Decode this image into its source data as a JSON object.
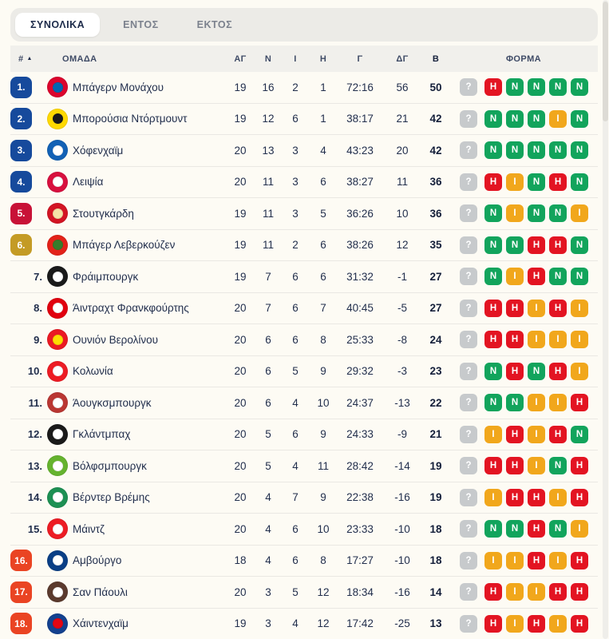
{
  "tabs": [
    {
      "label": "ΣΥΝΟΛΙΚΑ",
      "active": true
    },
    {
      "label": "ΕΝΤΟΣ",
      "active": false
    },
    {
      "label": "ΕΚΤΟΣ",
      "active": false
    }
  ],
  "sort_indicator": "▲",
  "table": {
    "headers": {
      "pos": "#",
      "team": "ΟΜΑΔΑ",
      "played": "ΑΓ",
      "wins": "Ν",
      "draws": "Ι",
      "losses": "Η",
      "goals": "Γ",
      "goal_diff": "ΔΓ",
      "points": "Β",
      "form": "ΦΟΡΜΑ"
    },
    "rows": [
      {
        "pos": "1.",
        "tier": "champions",
        "team": "Μπάγερν Μονάχου",
        "played": "19",
        "wins": "16",
        "draws": "2",
        "losses": "1",
        "goals": "72:16",
        "goal_diff": "56",
        "points": "50",
        "form": [
          "?",
          "H",
          "N",
          "N",
          "N",
          "N"
        ],
        "logo": {
          "primary": "#dc052d",
          "secondary": "#0066b2"
        }
      },
      {
        "pos": "2.",
        "tier": "champions",
        "team": "Μπορούσια Ντόρτμουντ",
        "played": "19",
        "wins": "12",
        "draws": "6",
        "losses": "1",
        "goals": "38:17",
        "goal_diff": "21",
        "points": "42",
        "form": [
          "?",
          "N",
          "N",
          "N",
          "I",
          "N"
        ],
        "logo": {
          "primary": "#ffd900",
          "secondary": "#1a1a1a"
        }
      },
      {
        "pos": "3.",
        "tier": "champions",
        "team": "Χόφενχαϊμ",
        "played": "20",
        "wins": "13",
        "draws": "3",
        "losses": "4",
        "goals": "43:23",
        "goal_diff": "20",
        "points": "42",
        "form": [
          "?",
          "N",
          "N",
          "N",
          "N",
          "N"
        ],
        "logo": {
          "primary": "#1261b5",
          "secondary": "#ffffff"
        }
      },
      {
        "pos": "4.",
        "tier": "champions",
        "team": "Λειψία",
        "played": "20",
        "wins": "11",
        "draws": "3",
        "losses": "6",
        "goals": "38:27",
        "goal_diff": "11",
        "points": "36",
        "form": [
          "?",
          "H",
          "I",
          "N",
          "H",
          "N"
        ],
        "logo": {
          "primary": "#d8103f",
          "secondary": "#ffffff"
        }
      },
      {
        "pos": "5.",
        "tier": "europa",
        "team": "Στουτγκάρδη",
        "played": "19",
        "wins": "11",
        "draws": "3",
        "losses": "5",
        "goals": "36:26",
        "goal_diff": "10",
        "points": "36",
        "form": [
          "?",
          "N",
          "I",
          "N",
          "N",
          "I"
        ],
        "logo": {
          "primary": "#d31423",
          "secondary": "#f6e3a8"
        }
      },
      {
        "pos": "6.",
        "tier": "conference",
        "team": "Μπάγερ Λεβερκούζεν",
        "played": "19",
        "wins": "11",
        "draws": "2",
        "losses": "6",
        "goals": "38:26",
        "goal_diff": "12",
        "points": "35",
        "form": [
          "?",
          "N",
          "N",
          "H",
          "H",
          "N"
        ],
        "logo": {
          "primary": "#e32219",
          "secondary": "#367c2b"
        }
      },
      {
        "pos": "7.",
        "tier": "none",
        "team": "Φράιμπουργκ",
        "played": "19",
        "wins": "7",
        "draws": "6",
        "losses": "6",
        "goals": "31:32",
        "goal_diff": "-1",
        "points": "27",
        "form": [
          "?",
          "N",
          "I",
          "H",
          "N",
          "N"
        ],
        "logo": {
          "primary": "#1a1a1a",
          "secondary": "#ffffff"
        }
      },
      {
        "pos": "8.",
        "tier": "none",
        "team": "Άιντραχτ Φρανκφούρτης",
        "played": "20",
        "wins": "7",
        "draws": "6",
        "losses": "7",
        "goals": "40:45",
        "goal_diff": "-5",
        "points": "27",
        "form": [
          "?",
          "H",
          "H",
          "I",
          "H",
          "I"
        ],
        "logo": {
          "primary": "#e1000f",
          "secondary": "#ffffff"
        }
      },
      {
        "pos": "9.",
        "tier": "none",
        "team": "Ουνιόν Βερολίνου",
        "played": "20",
        "wins": "6",
        "draws": "6",
        "losses": "8",
        "goals": "25:33",
        "goal_diff": "-8",
        "points": "24",
        "form": [
          "?",
          "H",
          "H",
          "I",
          "I",
          "I"
        ],
        "logo": {
          "primary": "#eb1923",
          "secondary": "#fddc02"
        }
      },
      {
        "pos": "10.",
        "tier": "none",
        "team": "Κολωνία",
        "played": "20",
        "wins": "6",
        "draws": "5",
        "losses": "9",
        "goals": "29:32",
        "goal_diff": "-3",
        "points": "23",
        "form": [
          "?",
          "N",
          "H",
          "N",
          "H",
          "I"
        ],
        "logo": {
          "primary": "#ed1c24",
          "secondary": "#ffffff"
        }
      },
      {
        "pos": "11.",
        "tier": "none",
        "team": "Άουγκσμπουργκ",
        "played": "20",
        "wins": "6",
        "draws": "4",
        "losses": "10",
        "goals": "24:37",
        "goal_diff": "-13",
        "points": "22",
        "form": [
          "?",
          "N",
          "N",
          "I",
          "I",
          "H"
        ],
        "logo": {
          "primary": "#ba3733",
          "secondary": "#ffffff"
        }
      },
      {
        "pos": "12.",
        "tier": "none",
        "team": "Γκλάντμπαχ",
        "played": "20",
        "wins": "5",
        "draws": "6",
        "losses": "9",
        "goals": "24:33",
        "goal_diff": "-9",
        "points": "21",
        "form": [
          "?",
          "I",
          "H",
          "I",
          "H",
          "N"
        ],
        "logo": {
          "primary": "#1a1a1a",
          "secondary": "#ffffff"
        }
      },
      {
        "pos": "13.",
        "tier": "none",
        "team": "Βόλφσμπουργκ",
        "played": "20",
        "wins": "5",
        "draws": "4",
        "losses": "11",
        "goals": "28:42",
        "goal_diff": "-14",
        "points": "19",
        "form": [
          "?",
          "H",
          "H",
          "I",
          "N",
          "H"
        ],
        "logo": {
          "primary": "#65b32e",
          "secondary": "#ffffff"
        }
      },
      {
        "pos": "14.",
        "tier": "none",
        "team": "Βέρντερ Βρέμης",
        "played": "20",
        "wins": "4",
        "draws": "7",
        "losses": "9",
        "goals": "22:38",
        "goal_diff": "-16",
        "points": "19",
        "form": [
          "?",
          "I",
          "H",
          "H",
          "I",
          "H"
        ],
        "logo": {
          "primary": "#1d9053",
          "secondary": "#ffffff"
        }
      },
      {
        "pos": "15.",
        "tier": "none",
        "team": "Μάιντζ",
        "played": "20",
        "wins": "4",
        "draws": "6",
        "losses": "10",
        "goals": "23:33",
        "goal_diff": "-10",
        "points": "18",
        "form": [
          "?",
          "N",
          "N",
          "H",
          "N",
          "I"
        ],
        "logo": {
          "primary": "#ed1c24",
          "secondary": "#ffffff"
        }
      },
      {
        "pos": "16.",
        "tier": "relegation",
        "team": "Αμβούργο",
        "played": "18",
        "wins": "4",
        "draws": "6",
        "losses": "8",
        "goals": "17:27",
        "goal_diff": "-10",
        "points": "18",
        "form": [
          "?",
          "I",
          "I",
          "H",
          "I",
          "H"
        ],
        "logo": {
          "primary": "#0a3f86",
          "secondary": "#ffffff"
        }
      },
      {
        "pos": "17.",
        "tier": "relegation",
        "team": "Σαν Πάουλι",
        "played": "20",
        "wins": "3",
        "draws": "5",
        "losses": "12",
        "goals": "18:34",
        "goal_diff": "-16",
        "points": "14",
        "form": [
          "?",
          "H",
          "I",
          "I",
          "H",
          "H"
        ],
        "logo": {
          "primary": "#5b3a2e",
          "secondary": "#ffffff"
        }
      },
      {
        "pos": "18.",
        "tier": "relegation",
        "team": "Χάιντενχαϊμ",
        "played": "19",
        "wins": "3",
        "draws": "4",
        "losses": "12",
        "goals": "17:42",
        "goal_diff": "-25",
        "points": "13",
        "form": [
          "?",
          "H",
          "I",
          "H",
          "I",
          "H"
        ],
        "logo": {
          "primary": "#13418f",
          "secondary": "#e30613"
        }
      }
    ]
  },
  "form_colors": {
    "?": "#c7cacc",
    "H": "#e31422",
    "N": "#12a45c",
    "I": "#f1a71c"
  },
  "position_tier_colors": {
    "champions": "#164a9c",
    "europa": "#c81237",
    "conference": "#c49b25",
    "relegation": "#ea4423"
  }
}
